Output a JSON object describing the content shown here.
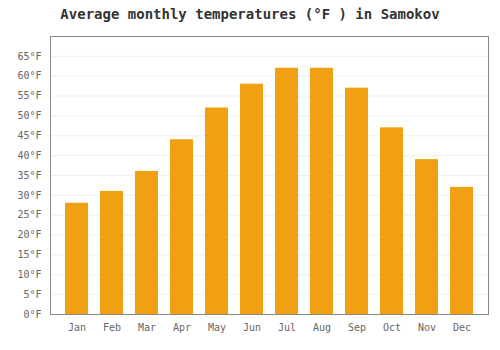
{
  "chart_data": {
    "type": "bar",
    "title": "Average monthly temperatures (°F ) in Samokov",
    "categories": [
      "Jan",
      "Feb",
      "Mar",
      "Apr",
      "May",
      "Jun",
      "Jul",
      "Aug",
      "Sep",
      "Oct",
      "Nov",
      "Dec"
    ],
    "values": [
      28,
      31,
      36,
      44,
      52,
      58,
      62,
      62,
      57,
      47,
      39,
      32
    ],
    "color": "#F0A010",
    "ylim": [
      0,
      70
    ],
    "yticks": [
      {
        "value": 0,
        "label": "0°F"
      },
      {
        "value": 5,
        "label": "5°F"
      },
      {
        "value": 10,
        "label": "10°F"
      },
      {
        "value": 15,
        "label": "15°F"
      },
      {
        "value": 20,
        "label": "20°F"
      },
      {
        "value": 25,
        "label": "25°F"
      },
      {
        "value": 30,
        "label": "30°F"
      },
      {
        "value": 35,
        "label": "35°F"
      },
      {
        "value": 40,
        "label": "40°F"
      },
      {
        "value": 45,
        "label": "45°F"
      },
      {
        "value": 50,
        "label": "50°F"
      },
      {
        "value": 55,
        "label": "55°F"
      },
      {
        "value": 60,
        "label": "60°F"
      },
      {
        "value": 65,
        "label": "65°F"
      }
    ],
    "grid": true
  }
}
